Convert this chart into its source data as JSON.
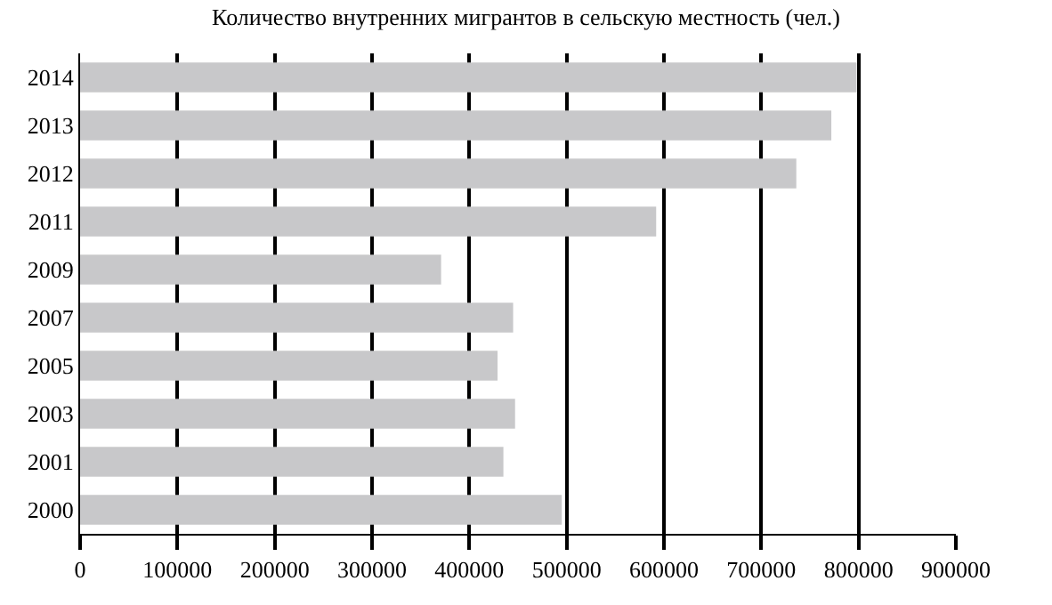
{
  "chart_data": {
    "type": "bar",
    "orientation": "horizontal",
    "title": "Количество внутренних мигрантов в сельскую местность (чел.)",
    "categories": [
      "2014",
      "2013",
      "2012",
      "2011",
      "2009",
      "2007",
      "2005",
      "2003",
      "2001",
      "2000"
    ],
    "values": [
      798000,
      772000,
      736000,
      592000,
      371000,
      445000,
      429000,
      447000,
      435000,
      495000
    ],
    "color": "#c8c8ca",
    "xlim": [
      0,
      900000
    ],
    "xticks": [
      0,
      100000,
      200000,
      300000,
      400000,
      500000,
      600000,
      700000,
      800000,
      900000
    ],
    "grid": "x"
  }
}
